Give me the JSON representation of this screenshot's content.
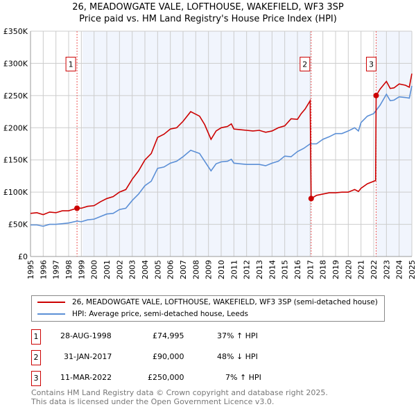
{
  "chart_data": {
    "type": "line",
    "title": "26, MEADOWGATE VALE, LOFTHOUSE, WAKEFIELD, WF3 3SP",
    "subtitle": "Price paid vs. HM Land Registry's House Price Index (HPI)",
    "xlim": [
      1995,
      2025
    ],
    "ylim": [
      0,
      350000
    ],
    "x_ticks": [
      "1995",
      "1996",
      "1997",
      "1998",
      "1999",
      "2000",
      "2001",
      "2002",
      "2003",
      "2004",
      "2005",
      "2006",
      "2007",
      "2008",
      "2009",
      "2010",
      "2011",
      "2012",
      "2013",
      "2014",
      "2015",
      "2016",
      "2017",
      "2018",
      "2019",
      "2020",
      "2021",
      "2022",
      "2023",
      "2024",
      "2025"
    ],
    "y_ticks": [
      {
        "v": 0,
        "label": "£0"
      },
      {
        "v": 50000,
        "label": "£50K"
      },
      {
        "v": 100000,
        "label": "£100K"
      },
      {
        "v": 150000,
        "label": "£150K"
      },
      {
        "v": 200000,
        "label": "£200K"
      },
      {
        "v": 250000,
        "label": "£250K"
      },
      {
        "v": 300000,
        "label": "£300K"
      },
      {
        "v": 350000,
        "label": "£350K"
      }
    ],
    "grid": true,
    "series": [
      {
        "name": "26, MEADOWGATE VALE, LOFTHOUSE, WAKEFIELD, WF3 3SP (semi-detached house)",
        "color": "#cc0000",
        "x": [
          1995,
          1995.5,
          1996,
          1996.5,
          1997,
          1997.5,
          1998,
          1998.66,
          1999,
          1999.5,
          2000,
          2000.5,
          2001,
          2001.5,
          2002,
          2002.5,
          2003,
          2003.5,
          2004,
          2004.5,
          2005,
          2005.5,
          2006,
          2006.5,
          2007,
          2007.6,
          2008.3,
          2008.7,
          2009.2,
          2009.6,
          2010,
          2010.5,
          2010.8,
          2011,
          2011.5,
          2012,
          2012.5,
          2013,
          2013.5,
          2014,
          2014.5,
          2015,
          2015.5,
          2016,
          2016.3,
          2016.6,
          2017.0,
          2017.08,
          2017.5,
          2018,
          2018.5,
          2019,
          2019.5,
          2020,
          2020.5,
          2020.8,
          2021,
          2021.5,
          2022.15,
          2022.19,
          2022.5,
          2023,
          2023.3,
          2023.6,
          2024,
          2024.5,
          2024.8,
          2025
        ],
        "y": [
          67000,
          68000,
          65000,
          69000,
          68000,
          71000,
          71000,
          74995,
          75000,
          78000,
          79000,
          85000,
          90000,
          93000,
          100000,
          104000,
          120000,
          133000,
          150000,
          160000,
          185000,
          190000,
          198000,
          200000,
          210000,
          225000,
          218000,
          205000,
          182000,
          195000,
          200000,
          202000,
          206000,
          198000,
          197000,
          196000,
          195000,
          196000,
          193000,
          195000,
          200000,
          203000,
          214000,
          213000,
          222000,
          229000,
          242000,
          90000,
          95000,
          97000,
          99000,
          99000,
          100000,
          100000,
          104000,
          101000,
          106000,
          113000,
          118000,
          250000,
          260000,
          272000,
          261000,
          262000,
          268000,
          266000,
          263000,
          284000
        ]
      },
      {
        "name": "HPI: Average price, semi-detached house, Leeds",
        "color": "#5b8fd6",
        "x": [
          1995,
          1995.5,
          1996,
          1996.5,
          1997,
          1997.5,
          1998,
          1998.66,
          1999,
          1999.5,
          2000,
          2000.5,
          2001,
          2001.5,
          2002,
          2002.5,
          2003,
          2003.5,
          2004,
          2004.5,
          2005,
          2005.5,
          2006,
          2006.5,
          2007,
          2007.6,
          2008.3,
          2008.7,
          2009.2,
          2009.6,
          2010,
          2010.5,
          2010.8,
          2011,
          2011.5,
          2012,
          2012.5,
          2013,
          2013.5,
          2014,
          2014.5,
          2015,
          2015.5,
          2016,
          2016.5,
          2017,
          2017.5,
          2018,
          2018.5,
          2019,
          2019.5,
          2020,
          2020.5,
          2020.8,
          2021,
          2021.5,
          2022,
          2022.5,
          2023,
          2023.3,
          2023.6,
          2024,
          2024.5,
          2024.8,
          2025
        ],
        "y": [
          49000,
          49000,
          47000,
          50000,
          50000,
          51000,
          52000,
          55000,
          54000,
          57000,
          58000,
          62000,
          66000,
          67000,
          73000,
          75000,
          87000,
          97000,
          110000,
          117000,
          137000,
          139000,
          145000,
          148000,
          155000,
          165000,
          160000,
          148000,
          133000,
          144000,
          147000,
          148000,
          151000,
          145000,
          144000,
          143000,
          143000,
          143000,
          141000,
          145000,
          148000,
          156000,
          155000,
          163000,
          168000,
          175000,
          175000,
          182000,
          186000,
          191000,
          191000,
          195000,
          200000,
          195000,
          208000,
          218000,
          222000,
          235000,
          252000,
          242000,
          243000,
          248000,
          247000,
          246000,
          265000
        ]
      }
    ],
    "sales": [
      {
        "n": "1",
        "date": "28-AUG-1998",
        "x": 1998.66,
        "price": 74995,
        "price_label": "£74,995",
        "hpi": "37% ↑ HPI"
      },
      {
        "n": "2",
        "date": "31-JAN-2017",
        "x": 2017.08,
        "price": 90000,
        "price_label": "£90,000",
        "hpi": "48% ↓ HPI"
      },
      {
        "n": "3",
        "date": "11-MAR-2022",
        "x": 2022.19,
        "price": 250000,
        "price_label": "£250,000",
        "hpi": "7% ↑ HPI"
      }
    ],
    "shaded_periods": [
      [
        1999.1,
        2017.08
      ],
      [
        2022.19,
        2025
      ]
    ]
  },
  "footer": [
    "Contains HM Land Registry data © Crown copyright and database right 2025.",
    "This data is licensed under the Open Government Licence v3.0."
  ]
}
